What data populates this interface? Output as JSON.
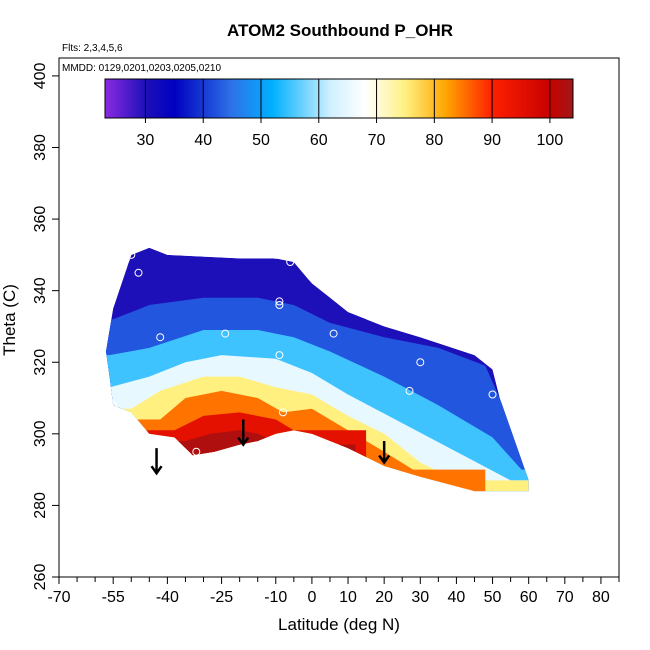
{
  "chart_data": {
    "type": "heatmap",
    "title": "ATOM2 Southbound P_OHR",
    "annotations": {
      "flights": "Flts: 2,3,4,5,6",
      "dates": "MMDD: 0129,0201,0203,0205,0210"
    },
    "xlabel": "Latitude (deg N)",
    "ylabel": "Theta (C)",
    "xlim": [
      -70,
      85
    ],
    "ylim": [
      260,
      405
    ],
    "xticks": [
      -70,
      -55,
      -40,
      -25,
      -10,
      0,
      10,
      20,
      30,
      40,
      50,
      60,
      70,
      80
    ],
    "xminor": [
      -65,
      -60,
      -50,
      -45,
      -35,
      -30,
      -20,
      -15,
      -5,
      5,
      15,
      25,
      35,
      45,
      55,
      65,
      75,
      85
    ],
    "yticks": [
      260,
      280,
      300,
      320,
      340,
      360,
      380,
      400
    ],
    "grid": false,
    "colorbar": {
      "placement": "top-inside",
      "range": [
        23,
        104
      ],
      "ticks": [
        30,
        40,
        50,
        60,
        70,
        80,
        90,
        100
      ],
      "colors": {
        "v23": "#8a2be2",
        "v30": "#1e10b8",
        "v35": "#0000c0",
        "v45": "#2e72e8",
        "v52": "#00b0ff",
        "v62": "#d0f0ff",
        "v68": "#ffffff",
        "v75": "#fff080",
        "v82": "#ffa500",
        "v90": "#ff2000",
        "v100": "#c80000",
        "v104": "#a01818"
      }
    },
    "field": {
      "description_units": "theta at latitude",
      "top_boundary": [
        [
          -57,
          323
        ],
        [
          -55,
          335
        ],
        [
          -50,
          350
        ],
        [
          -45,
          352
        ],
        [
          -40,
          350
        ],
        [
          -20,
          349
        ],
        [
          -10,
          349
        ],
        [
          -5,
          348
        ],
        [
          0,
          342
        ],
        [
          5,
          338
        ],
        [
          10,
          334
        ],
        [
          20,
          330
        ],
        [
          30,
          327
        ],
        [
          45,
          322
        ],
        [
          50,
          318
        ],
        [
          52,
          310
        ],
        [
          60,
          287
        ]
      ],
      "bottom_boundary": [
        [
          60,
          284
        ],
        [
          45,
          284
        ],
        [
          30,
          288
        ],
        [
          20,
          291
        ],
        [
          10,
          296
        ],
        [
          0,
          300
        ],
        [
          -5,
          301
        ],
        [
          -10,
          300
        ],
        [
          -15,
          298
        ],
        [
          -20,
          297
        ],
        [
          -27,
          295
        ],
        [
          -33,
          294
        ],
        [
          -38,
          299
        ],
        [
          -45,
          300
        ],
        [
          -50,
          306
        ],
        [
          -55,
          308
        ],
        [
          -56,
          316
        ]
      ],
      "contours": [
        {
          "value": 25,
          "points": [
            [
              -50,
              348
            ],
            [
              -40,
              344
            ],
            [
              -25,
              345
            ],
            [
              -10,
              344
            ],
            [
              -5,
              343
            ]
          ]
        },
        {
          "value": 35,
          "points": [
            [
              -55,
              332
            ],
            [
              -45,
              336
            ],
            [
              -30,
              338
            ],
            [
              -15,
              338
            ],
            [
              -5,
              336
            ],
            [
              5,
              331
            ],
            [
              20,
              327
            ],
            [
              35,
              324
            ],
            [
              48,
              319
            ],
            [
              55,
              303
            ]
          ]
        },
        {
          "value": 50,
          "points": [
            [
              -56,
              322
            ],
            [
              -45,
              324
            ],
            [
              -30,
              329
            ],
            [
              -15,
              329
            ],
            [
              -5,
              327
            ],
            [
              5,
              323
            ],
            [
              20,
              316
            ],
            [
              35,
              308
            ],
            [
              50,
              299
            ],
            [
              58,
              290
            ]
          ]
        },
        {
          "value": 60,
          "points": [
            [
              -56,
              313
            ],
            [
              -45,
              316
            ],
            [
              -35,
              320
            ],
            [
              -25,
              322
            ],
            [
              -10,
              321
            ],
            [
              0,
              317
            ],
            [
              10,
              311
            ],
            [
              25,
              303
            ],
            [
              40,
              295
            ],
            [
              55,
              287
            ]
          ]
        },
        {
          "value": 70,
          "points": [
            [
              -50,
              307
            ],
            [
              -42,
              312
            ],
            [
              -30,
              316
            ],
            [
              -20,
              316
            ],
            [
              -10,
              313
            ],
            [
              0,
              311
            ],
            [
              10,
              305
            ],
            [
              20,
              300
            ],
            [
              30,
              292
            ],
            [
              40,
              287
            ]
          ]
        },
        {
          "value": 80,
          "points": [
            [
              -42,
              304
            ],
            [
              -35,
              310
            ],
            [
              -25,
              312
            ],
            [
              -15,
              310
            ],
            [
              -8,
              306
            ],
            [
              0,
              307
            ],
            [
              10,
              301
            ],
            [
              20,
              295
            ],
            [
              28,
              290
            ]
          ]
        },
        {
          "value": 90,
          "points": [
            [
              -38,
              301
            ],
            [
              -30,
              305
            ],
            [
              -20,
              306
            ],
            [
              -10,
              304
            ],
            [
              -5,
              301
            ]
          ]
        },
        {
          "value": 100,
          "points": [
            [
              -35,
              298
            ],
            [
              -28,
              300
            ],
            [
              -20,
              301
            ],
            [
              -15,
              300
            ],
            [
              -8,
              297
            ]
          ]
        }
      ]
    },
    "flight_points": [
      {
        "lat": -50,
        "theta": 350
      },
      {
        "lat": -48,
        "theta": 345
      },
      {
        "lat": -10,
        "theta": 350
      },
      {
        "lat": -6,
        "theta": 348
      },
      {
        "lat": -9,
        "theta": 337
      },
      {
        "lat": -9,
        "theta": 336
      },
      {
        "lat": -42,
        "theta": 327
      },
      {
        "lat": -24,
        "theta": 328
      },
      {
        "lat": 6,
        "theta": 328
      },
      {
        "lat": -9,
        "theta": 322
      },
      {
        "lat": 30,
        "theta": 320
      },
      {
        "lat": 27,
        "theta": 312
      },
      {
        "lat": 50,
        "theta": 311
      },
      {
        "lat": -55,
        "theta": 308
      },
      {
        "lat": -8,
        "theta": 306
      },
      {
        "lat": -32,
        "theta": 295
      }
    ],
    "arrows": [
      {
        "lat": -43,
        "theta_from": 296,
        "theta_to": 289
      },
      {
        "lat": -19,
        "theta_from": 304,
        "theta_to": 297
      },
      {
        "lat": 20,
        "theta_from": 298,
        "theta_to": 292
      }
    ]
  }
}
